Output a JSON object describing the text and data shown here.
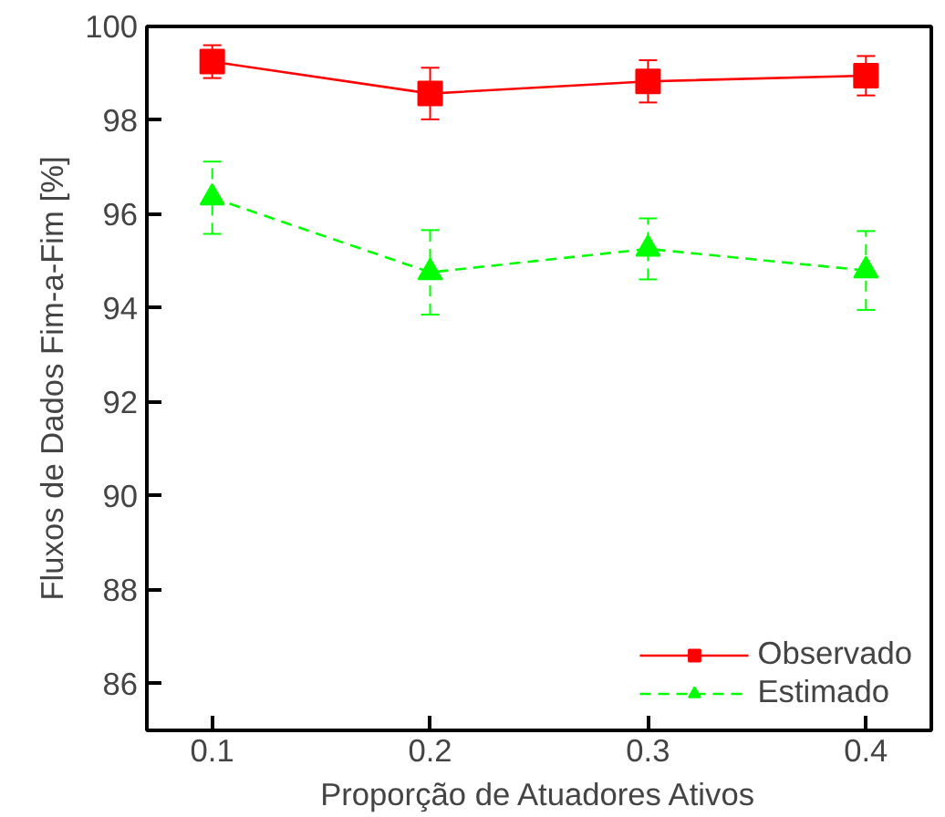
{
  "chart_data": {
    "type": "line",
    "xlabel": "Proporção de Atuadores Ativos",
    "ylabel": "Fluxos de Dados Fim-a-Fim [%]",
    "x": [
      0.1,
      0.2,
      0.3,
      0.4
    ],
    "series": [
      {
        "name": "Observado",
        "color": "#ff0000",
        "values": [
          99.25,
          98.57,
          98.83,
          98.95
        ],
        "errors": [
          0.35,
          0.55,
          0.45,
          0.42
        ],
        "marker": "square",
        "line_style": "solid"
      },
      {
        "name": "Estimado",
        "color": "#00ff00",
        "values": [
          96.35,
          94.76,
          95.26,
          94.8
        ],
        "errors": [
          0.77,
          0.9,
          0.65,
          0.84
        ],
        "marker": "triangle",
        "line_style": "dashed"
      }
    ],
    "xlim": [
      0.07,
      0.43
    ],
    "ylim": [
      85,
      100
    ],
    "xticks": [
      0.1,
      0.2,
      0.3,
      0.4
    ],
    "yticks": [
      86,
      88,
      90,
      92,
      94,
      96,
      98,
      100
    ],
    "grid": false,
    "legend": "bottom right"
  }
}
